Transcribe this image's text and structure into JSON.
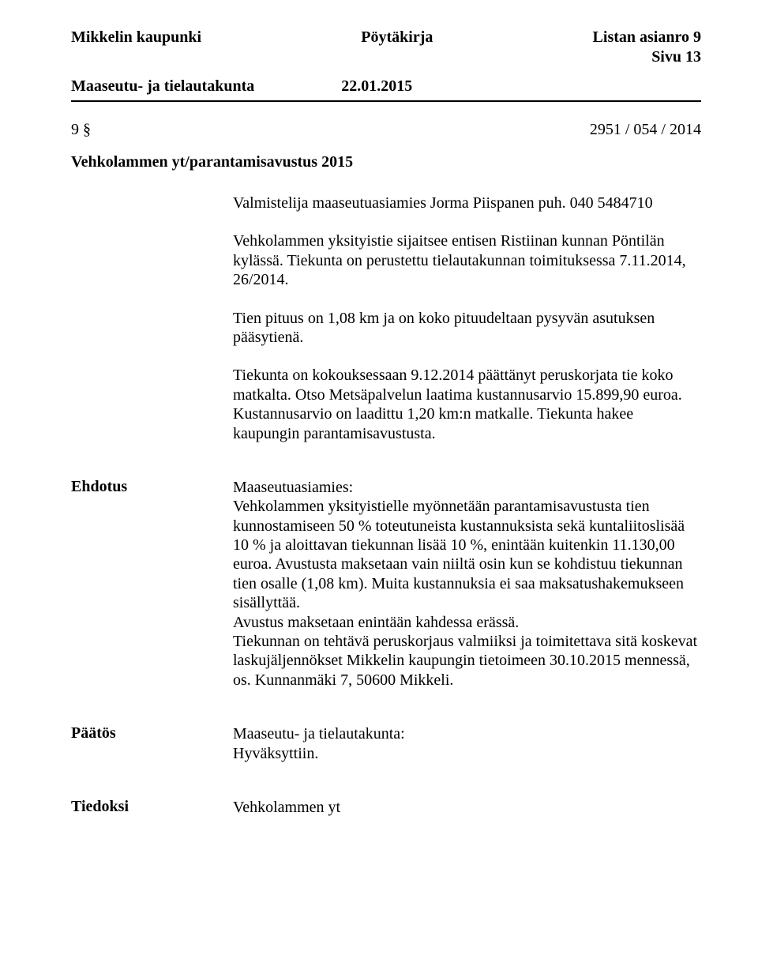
{
  "header": {
    "org": "Mikkelin kaupunki",
    "type": "Pöytäkirja",
    "list_label": "Listan asianro 9",
    "page_label": "Sivu 13"
  },
  "subheader": {
    "committee": "Maaseutu- ja tielautakunta",
    "date": "22.01.2015"
  },
  "item": {
    "number": "9 §",
    "ref": "2951 / 054 / 2014"
  },
  "title": "Vehkolammen yt/parantamisavustus 2015",
  "body": {
    "p1": "Valmistelija maaseutuasiamies Jorma Piispanen puh. 040 5484710",
    "p2": "Vehkolammen yksityistie sijaitsee entisen Ristiinan kunnan Pöntilän kylässä. Tiekunta on perustettu tielautakunnan toimituksessa 7.11.2014, 26/2014.",
    "p3": "Tien pituus on 1,08 km ja on koko pituudeltaan pysyvän asutuksen pääsytienä.",
    "p4": "Tiekunta on kokouksessaan 9.12.2014 päättänyt peruskorjata tie koko matkalta. Otso Metsäpalvelun laatima kustannusarvio 15.899,90 euroa. Kustannusarvio on laadittu 1,20 km:n matkalle. Tiekunta hakee kaupungin parantamisavustusta."
  },
  "ehdotus": {
    "label": "Ehdotus",
    "role": "Maaseutuasiamies:",
    "p1": "Vehkolammen yksityistielle myönnetään parantamisavustusta tien kunnostamiseen 50 % toteutuneista kustannuksista sekä kuntaliitoslisää 10 % ja aloittavan tiekunnan lisää 10 %, enintään kuitenkin 11.130,00 euroa. Avustusta maksetaan vain niiltä osin kun se kohdistuu tiekunnan tien osalle (1,08 km). Muita kustannuksia ei saa maksatushakemukseen sisällyttää.",
    "p2": "Avustus maksetaan enintään kahdessa erässä.",
    "p3": "Tiekunnan on tehtävä peruskorjaus valmiiksi ja toimitettava sitä koskevat laskujäljennökset Mikkelin kaupungin tietoimeen 30.10.2015 mennessä, os. Kunnanmäki 7, 50600 Mikkeli."
  },
  "paatos": {
    "label": "Päätös",
    "role": "Maaseutu- ja tielautakunta:",
    "text": "Hyväksyttiin."
  },
  "tiedoksi": {
    "label": "Tiedoksi",
    "text": "Vehkolammen yt"
  }
}
